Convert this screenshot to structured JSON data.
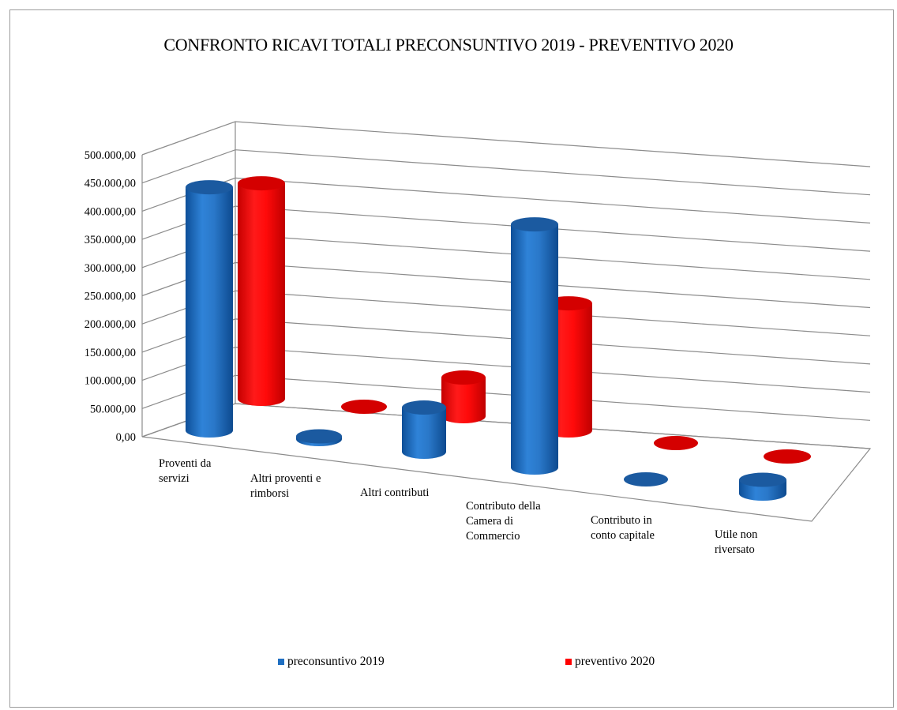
{
  "chart_data": {
    "type": "bar",
    "title": "CONFRONTO RICAVI TOTALI PRECONSUNTIVO 2019 - PREVENTIVO 2020",
    "categories": [
      "Proventi da\nservizi",
      "Altri proventi e\nrimborsi",
      "Altri contributi",
      "Contributo della\nCamera di\nCommercio",
      "Contributo in\nconto capitale",
      "Utile non\nriversato"
    ],
    "series": [
      {
        "name": "preconsuntivo 2019",
        "color": "#1f6fc2",
        "values": [
          440000,
          5000,
          80000,
          440000,
          0,
          25000
        ]
      },
      {
        "name": "preventivo 2020",
        "color": "#ff0000",
        "values": [
          390000,
          2000,
          70000,
          230000,
          0,
          0
        ]
      }
    ],
    "ylim": [
      0,
      500000
    ],
    "yticks": [
      "0,00",
      "50.000,00",
      "100.000,00",
      "150.000,00",
      "200.000,00",
      "250.000,00",
      "300.000,00",
      "350.000,00",
      "400.000,00",
      "450.000,00",
      "500.000,00"
    ],
    "xlabel": "",
    "ylabel": "",
    "grid": true,
    "legend": "bottom"
  }
}
